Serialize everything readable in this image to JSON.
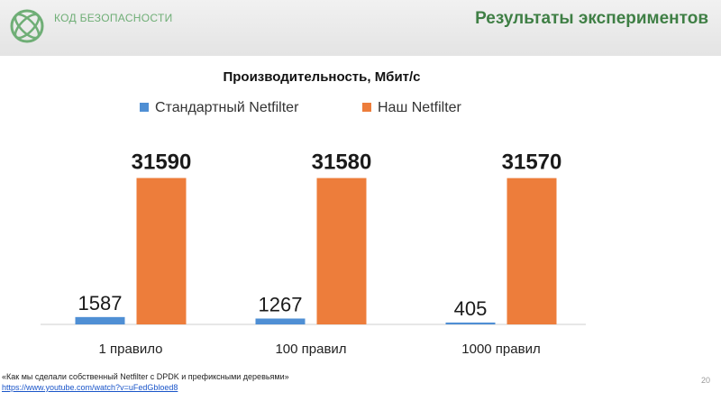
{
  "header": {
    "brand": "КОД БЕЗОПАСНОСТИ",
    "slide_title": "Результаты экспериментов"
  },
  "colors": {
    "brand_green": "#3f7f45",
    "series_standard": "#4f8fd4",
    "series_ours": "#ed7d3b"
  },
  "chart_data": {
    "type": "bar",
    "title": "Производительность, Мбит/с",
    "legend_position": "top",
    "categories": [
      "1 правило",
      "100 правил",
      "1000 правил"
    ],
    "series": [
      {
        "name": "Стандартный Netfilter",
        "values": [
          1587,
          1267,
          405
        ],
        "color": "#4f8fd4"
      },
      {
        "name": "Наш Netfilter",
        "values": [
          31590,
          31580,
          31570
        ],
        "color": "#ed7d3b"
      }
    ],
    "ylim": [
      0,
      35000
    ],
    "grid": false
  },
  "footer": {
    "note": "«Как мы сделали собственный Netfilter с DPDK и префиксными деревьями»",
    "link": "https://www.youtube.com/watch?v=uFedGbloed8",
    "page_number": "20"
  }
}
